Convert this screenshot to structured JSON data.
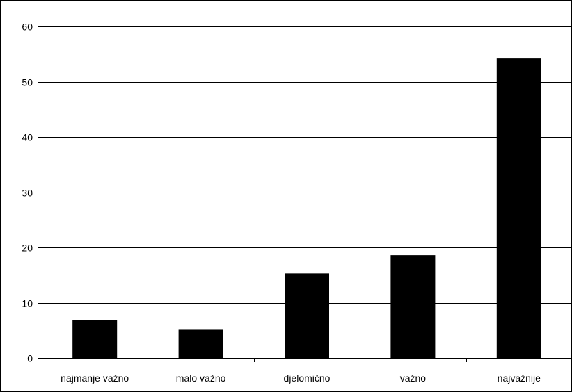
{
  "chart_data": {
    "type": "bar",
    "categories": [
      "najmanje važno",
      "malo važno",
      "djelomično",
      "važno",
      "najvažnije"
    ],
    "values": [
      6.8,
      5.1,
      15.3,
      18.6,
      54.2
    ],
    "ylim": [
      0,
      60
    ],
    "yticks": [
      0,
      10,
      20,
      30,
      40,
      50,
      60
    ],
    "grid": true,
    "legend": "none",
    "bar_color": "#000000",
    "gridline_color": "#000000",
    "background_color": "#ffffff"
  }
}
